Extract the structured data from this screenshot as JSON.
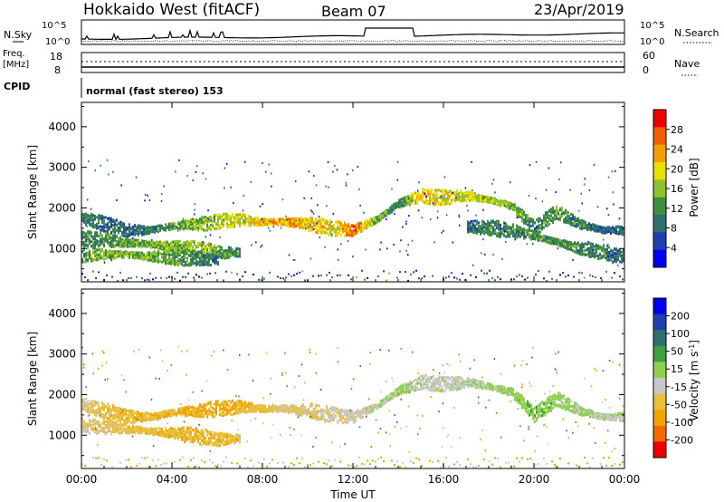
{
  "header": {
    "site": "Hokkaido West (fitACF)",
    "beam": "Beam 07",
    "date": "23/Apr/2019"
  },
  "top_panels": {
    "nsky_label": "N.Sky",
    "nsearch_label": "N.Search",
    "noise_left_ticks": [
      "10^5",
      "10^0"
    ],
    "noise_right_ticks": [
      "10^5",
      "10^0"
    ],
    "freq_label_1": "Freq.",
    "freq_label_2": "[MHz]",
    "freq_ticks": [
      "18",
      "8"
    ],
    "nave_label": "Nave",
    "nave_ticks": [
      "60",
      "0"
    ],
    "cpid_label": "CPID",
    "cpid_text": "normal (fast stereo) 153"
  },
  "colors": {
    "power_scale": [
      "#0000ee",
      "#1f3fb0",
      "#2f6f6f",
      "#3f8f3f",
      "#8fc02f",
      "#e8e000",
      "#f0a000",
      "#f06000",
      "#ee0000"
    ],
    "velocity_scale": [
      "#ee0000",
      "#f06a00",
      "#f0a500",
      "#e8c040",
      "#c8c8c8",
      "#90d050",
      "#3fa03f",
      "#2f6f6f",
      "#1f3fb0",
      "#0000ee"
    ],
    "ground_grey": "#b8b8b8"
  },
  "chart_data": [
    {
      "type": "heatmap",
      "name": "Power",
      "ylabel": "Slant Range [km]",
      "xlabel": "Time UT",
      "x_ticks": [
        "00:00",
        "04:00",
        "08:00",
        "12:00",
        "16:00",
        "20:00",
        "00:00"
      ],
      "x_range_hours": [
        0,
        24
      ],
      "ylim": [
        180,
        4600
      ],
      "y_ticks": [
        1000,
        2000,
        3000,
        4000
      ],
      "colorbar": {
        "label": "Power [dB]",
        "ticks": [
          4,
          8,
          12,
          16,
          20,
          24,
          28
        ],
        "range": [
          0,
          30
        ]
      },
      "echo_bands": [
        {
          "hours": [
            0,
            1,
            2,
            3,
            4,
            5,
            6,
            7,
            8,
            9,
            10,
            11,
            12,
            13,
            14,
            15,
            16,
            17,
            18,
            19,
            20,
            21,
            22,
            23,
            24
          ],
          "range_km": [
            1750,
            1600,
            1450,
            1450,
            1550,
            1600,
            1650,
            1700,
            1650,
            1650,
            1600,
            1500,
            1450,
            1700,
            2100,
            2300,
            2250,
            2300,
            2200,
            2050,
            1500,
            1900,
            1600,
            1450,
            1450
          ],
          "power_db": [
            10,
            8,
            8,
            9,
            12,
            14,
            16,
            18,
            20,
            22,
            20,
            18,
            24,
            14,
            10,
            20,
            18,
            18,
            16,
            14,
            10,
            12,
            10,
            8,
            8
          ]
        },
        {
          "hours": [
            0,
            1,
            2,
            3,
            4,
            5,
            6,
            7
          ],
          "range_km": [
            1250,
            1200,
            1150,
            1100,
            1050,
            1000,
            900,
            900
          ],
          "power_db": [
            10,
            12,
            12,
            14,
            14,
            16,
            12,
            10
          ]
        },
        {
          "hours": [
            0,
            1,
            2,
            3,
            4,
            5,
            6
          ],
          "range_km": [
            850,
            850,
            850,
            800,
            780,
            760,
            700
          ],
          "power_db": [
            12,
            14,
            14,
            14,
            12,
            10,
            8
          ]
        },
        {
          "hours": [
            17,
            18,
            19,
            20,
            21,
            22,
            23,
            24
          ],
          "range_km": [
            1550,
            1500,
            1450,
            1300,
            1150,
            1000,
            900,
            800
          ],
          "power_db": [
            8,
            10,
            10,
            12,
            12,
            10,
            10,
            8
          ]
        }
      ]
    },
    {
      "type": "heatmap",
      "name": "Velocity",
      "ylabel": "Slant Range [km]",
      "xlabel": "Time UT",
      "x_ticks": [
        "00:00",
        "04:00",
        "08:00",
        "12:00",
        "16:00",
        "20:00",
        "00:00"
      ],
      "x_range_hours": [
        0,
        24
      ],
      "ylim": [
        180,
        4600
      ],
      "y_ticks": [
        1000,
        2000,
        3000,
        4000
      ],
      "colorbar": {
        "label": "Velocity [m s^-1]",
        "ticks": [
          "200",
          "100",
          "50",
          "15",
          "-15",
          "-50",
          "-100",
          "-200"
        ],
        "range": [
          -250,
          250
        ]
      },
      "echo_bands": [
        {
          "hours": [
            0,
            1,
            2,
            3,
            4,
            5,
            6,
            7,
            8,
            9,
            10,
            11,
            12,
            13,
            14,
            15,
            16,
            17,
            18,
            19,
            20,
            21,
            22,
            23,
            24
          ],
          "range_km": [
            1750,
            1600,
            1450,
            1450,
            1550,
            1600,
            1650,
            1700,
            1650,
            1650,
            1600,
            1500,
            1450,
            1700,
            2100,
            2300,
            2250,
            2300,
            2200,
            2050,
            1500,
            1900,
            1600,
            1450,
            1450
          ],
          "velocity": [
            -20,
            -30,
            -40,
            -40,
            -50,
            -60,
            -50,
            -40,
            -30,
            -20,
            -20,
            -10,
            -5,
            0,
            20,
            0,
            0,
            5,
            20,
            30,
            40,
            30,
            20,
            10,
            0
          ]
        },
        {
          "hours": [
            0,
            1,
            2,
            3,
            4,
            5,
            6,
            7
          ],
          "range_km": [
            1250,
            1200,
            1150,
            1100,
            1050,
            1000,
            900,
            900
          ],
          "velocity": [
            -10,
            -20,
            -30,
            -40,
            -40,
            -50,
            -40,
            -30
          ]
        }
      ]
    }
  ],
  "xlabel_text": "Time UT"
}
